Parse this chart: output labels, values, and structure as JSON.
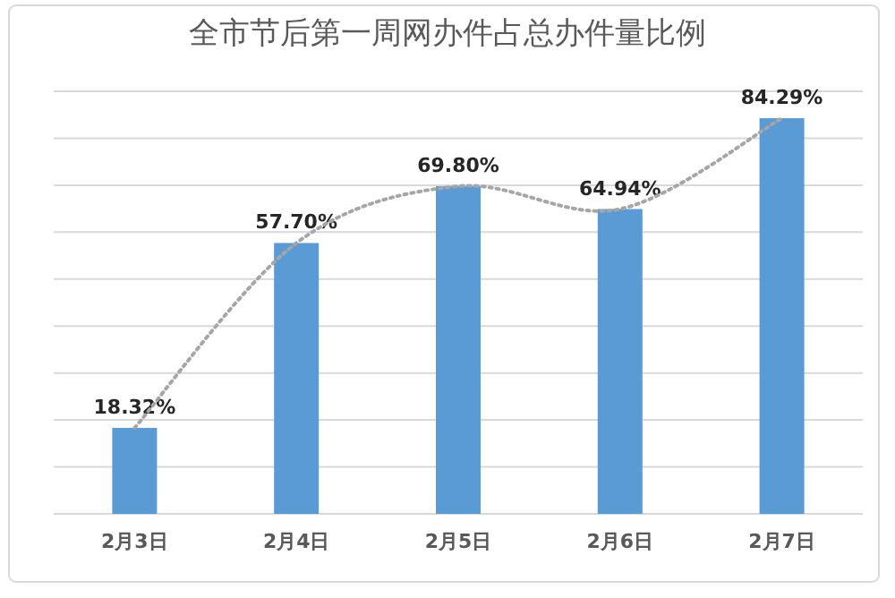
{
  "chart_data": {
    "type": "bar",
    "title": "全市节后第一周网办件占总办件量比例",
    "categories": [
      "2月3日",
      "2月4日",
      "2月5日",
      "2月6日",
      "2月7日"
    ],
    "series": [
      {
        "color": "#5b9bd5",
        "values": [
          18.32,
          57.7,
          69.8,
          64.94,
          84.29
        ],
        "value_labels": [
          "18.32%",
          "57.70%",
          "69.80%",
          "64.94%",
          "84.29%"
        ]
      },
      {
        "type": "line",
        "color": "#a6a6a6",
        "line_style": "dotted",
        "marker": "none",
        "values": [
          18.32,
          57.7,
          69.8,
          64.94,
          84.29
        ]
      }
    ],
    "grid": "y",
    "tick_labels": "x"
  }
}
